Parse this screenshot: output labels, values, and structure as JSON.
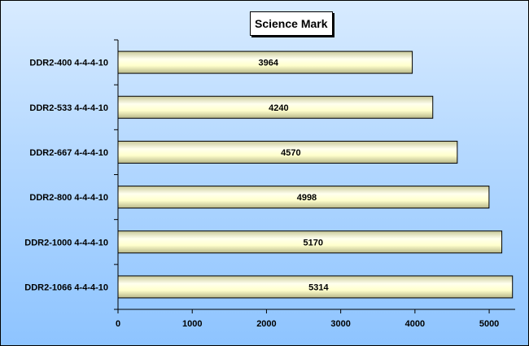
{
  "chart_data": {
    "type": "bar",
    "orientation": "horizontal",
    "title": "Science Mark",
    "categories": [
      "DDR2-400 4-4-4-10",
      "DDR2-533 4-4-4-10",
      "DDR2-667  4-4-4-10",
      "DDR2-800  4-4-4-10",
      "DDR2-1000 4-4-4-10",
      "DDR2-1066 4-4-4-10"
    ],
    "values": [
      3964,
      4240,
      4570,
      4998,
      5170,
      5314
    ],
    "xlim": [
      0,
      5350
    ],
    "x_ticks": [
      0,
      1000,
      2000,
      3000,
      4000,
      5000
    ],
    "tick_labels": [
      "0",
      "1000",
      "2000",
      "3000",
      "4000",
      "5000"
    ],
    "grid": false,
    "legend": "none",
    "colors": {
      "bar_fill": "#ffffcc",
      "bar_shade": "#c9c99a",
      "background_top": "#d8ebff",
      "background_bottom": "#8ec4ff"
    }
  }
}
